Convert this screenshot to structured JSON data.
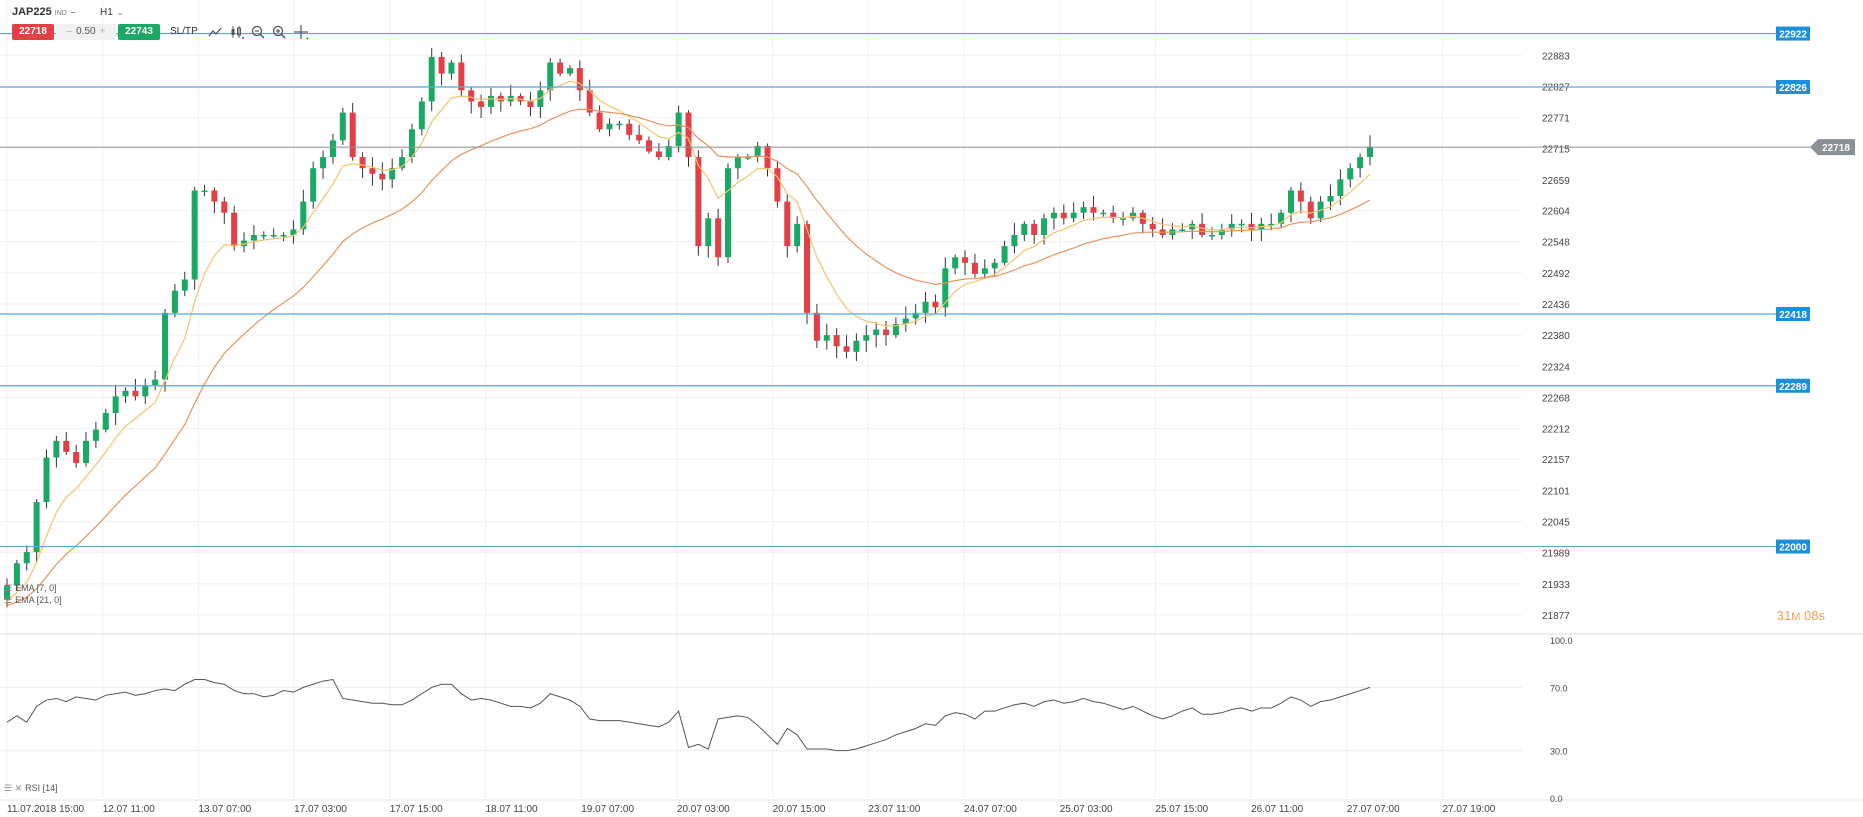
{
  "toolbar": {
    "symbol": "JAP225",
    "symbol_sub": "IND",
    "symbol_caret": "–",
    "timeframe": "H1",
    "timeframe_caret": "⌄",
    "sell_price": "22718",
    "spread_minus": "–",
    "spread": "0.50",
    "spread_plus": "+",
    "buy_price": "22743",
    "sltp_label": "SL/TP",
    "icons": [
      "line-chart-icon",
      "candles-icon",
      "zoom-out-icon",
      "zoom-in-icon",
      "crosshair-icon"
    ]
  },
  "indicators": {
    "ema_fast": "EMA [7, 0]",
    "ema_slow": "EMA [21, 0]",
    "rsi": "RSI [14]"
  },
  "timer": {
    "value": "31",
    "unit_m": "M",
    "seconds": "08s"
  },
  "colors": {
    "bull": "#1aa865",
    "bear": "#e43f47",
    "ema_fast": "#f5c36b",
    "ema_slow": "#e8945c",
    "hline": "#5aa7d6",
    "hline_badge": "#1a8fdc",
    "current_price": "#8a9096",
    "rsi_line": "#555555",
    "grid": "#f0f0f0"
  },
  "chart_data": {
    "type": "candlestick",
    "ylim": [
      21850,
      22950
    ],
    "y_ticks": [
      "22883",
      "22827",
      "22771",
      "22715",
      "22659",
      "22604",
      "22548",
      "22492",
      "22436",
      "22380",
      "22324",
      "22268",
      "22212",
      "22157",
      "22101",
      "22045",
      "21989",
      "21933",
      "21877"
    ],
    "x_ticks": [
      "11.07.2018 15:00",
      "12.07 11:00",
      "13.07 07:00",
      "17.07 03:00",
      "17.07 15:00",
      "18.07 11:00",
      "19.07 07:00",
      "20.07 03:00",
      "20.07 15:00",
      "23.07 11:00",
      "24.07 07:00",
      "25.07 03:00",
      "25.07 15:00",
      "26.07 11:00",
      "27.07 07:00",
      "27.07 19:00"
    ],
    "levels": [
      22922,
      22826,
      22418,
      22289,
      22000
    ],
    "level_labels": [
      "22922",
      "22826",
      "22418",
      "22289",
      "22000"
    ],
    "current_price": 22718,
    "current_price_label": "22718",
    "close": [
      21930,
      21970,
      21990,
      22080,
      22160,
      22190,
      22170,
      22150,
      22190,
      22210,
      22240,
      22270,
      22280,
      22270,
      22290,
      22300,
      22420,
      22460,
      22480,
      22640,
      22640,
      22620,
      22600,
      22540,
      22550,
      22560,
      22560,
      22560,
      22560,
      22570,
      22620,
      22680,
      22700,
      22730,
      22780,
      22700,
      22680,
      22670,
      22660,
      22680,
      22700,
      22750,
      22800,
      22880,
      22850,
      22870,
      22820,
      22800,
      22790,
      22810,
      22800,
      22810,
      22800,
      22790,
      22820,
      22870,
      22850,
      22860,
      22820,
      22780,
      22750,
      22760,
      22760,
      22740,
      22730,
      22710,
      22700,
      22720,
      22780,
      22700,
      22540,
      22590,
      22520,
      22680,
      22700,
      22700,
      22720,
      22680,
      22620,
      22540,
      22580,
      22420,
      22370,
      22380,
      22360,
      22350,
      22370,
      22380,
      22390,
      22380,
      22400,
      22410,
      22420,
      22440,
      22430,
      22500,
      22520,
      22510,
      22490,
      22500,
      22510,
      22540,
      22560,
      22580,
      22560,
      22590,
      22600,
      22590,
      22600,
      22610,
      22600,
      22600,
      22590,
      22590,
      22600,
      22580,
      22570,
      22560,
      22570,
      22570,
      22580,
      22560,
      22560,
      22570,
      22580,
      22580,
      22570,
      22580,
      22580,
      22600,
      22640,
      22620,
      22590,
      22620,
      22630,
      22660,
      22680,
      22700,
      22718
    ],
    "rsi": {
      "ylim": [
        0,
        100
      ],
      "y_ticks": [
        "100.0",
        "70.0",
        "30.0",
        "0.0"
      ],
      "values": [
        48,
        52,
        48,
        58,
        62,
        63,
        61,
        64,
        63,
        62,
        65,
        66,
        67,
        65,
        66,
        68,
        69,
        68,
        72,
        75,
        75,
        73,
        72,
        68,
        66,
        66,
        64,
        65,
        68,
        67,
        70,
        72,
        74,
        75,
        63,
        62,
        61,
        60,
        60,
        59,
        59,
        62,
        66,
        70,
        72,
        72,
        66,
        62,
        63,
        62,
        60,
        58,
        58,
        57,
        60,
        66,
        64,
        62,
        58,
        50,
        49,
        49,
        49,
        48,
        47,
        46,
        45,
        48,
        55,
        32,
        34,
        31,
        50,
        51,
        52,
        51,
        46,
        40,
        34,
        44,
        40,
        31,
        31,
        31,
        30,
        30,
        31,
        33,
        35,
        37,
        40,
        42,
        44,
        47,
        46,
        52,
        54,
        53,
        50,
        55,
        55,
        57,
        59,
        60,
        58,
        61,
        62,
        60,
        61,
        63,
        61,
        60,
        58,
        56,
        58,
        55,
        52,
        50,
        52,
        55,
        57,
        53,
        53,
        54,
        56,
        57,
        55,
        57,
        57,
        60,
        64,
        62,
        58,
        61,
        62,
        64,
        66,
        68,
        70
      ]
    }
  }
}
